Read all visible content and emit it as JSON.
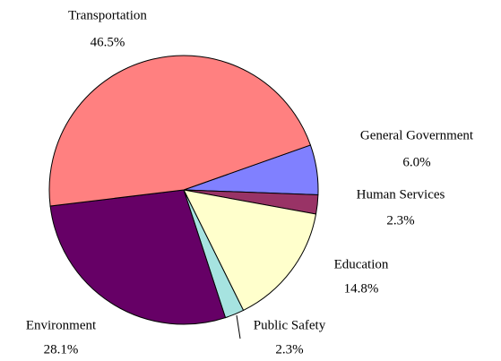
{
  "chart_data": {
    "type": "pie",
    "categories": [
      "General Government",
      "Human Services",
      "Education",
      "Public Safety",
      "Environment",
      "Transportation"
    ],
    "values": [
      6.0,
      2.3,
      14.8,
      2.3,
      28.1,
      46.5
    ],
    "value_labels": [
      "6.0%",
      "2.3%",
      "14.8%",
      "2.3%",
      "28.1%",
      "46.5%"
    ],
    "colors": [
      "#8080ff",
      "#993366",
      "#ffffcc",
      "#a6e3e0",
      "#660066",
      "#ff8080"
    ]
  }
}
